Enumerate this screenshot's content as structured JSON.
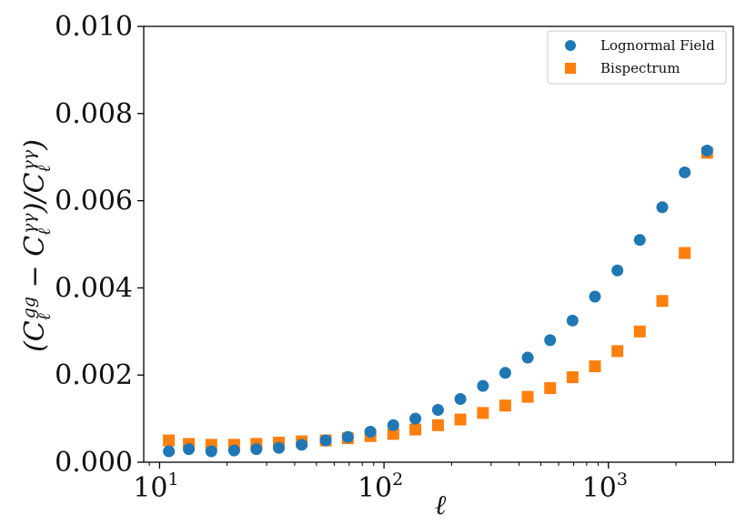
{
  "chart_data": {
    "type": "scatter",
    "xscale": "log",
    "xlim": [
      8.5,
      3600
    ],
    "ylim": [
      0.0,
      0.01
    ],
    "xlabel": "ℓ",
    "ylabel": "(C_ℓ^gg − C_ℓ^γγ)/C_ℓ^γγ",
    "y_ticks": [
      "0.000",
      "0.002",
      "0.004",
      "0.006",
      "0.008",
      "0.010"
    ],
    "y_tick_values": [
      0.0,
      0.002,
      0.004,
      0.006,
      0.008,
      0.01
    ],
    "x_ticks": [
      {
        "value": 10,
        "base": "10",
        "exp": "1"
      },
      {
        "value": 100,
        "base": "10",
        "exp": "2"
      },
      {
        "value": 1000,
        "base": "10",
        "exp": "3"
      }
    ],
    "legend_position": "top-right",
    "series": [
      {
        "name": "Lognormal Field",
        "marker": "circle",
        "color": "#1f77b4",
        "x": [
          11,
          13.5,
          17,
          21.5,
          27,
          34,
          43,
          55,
          69,
          87,
          110,
          138,
          174,
          219,
          276,
          347,
          437,
          550,
          692,
          871,
          1097,
          1380,
          1738,
          2188,
          2754
        ],
        "y": [
          0.00025,
          0.0003,
          0.00025,
          0.00027,
          0.0003,
          0.00033,
          0.0004,
          0.0005,
          0.00058,
          0.0007,
          0.00085,
          0.001,
          0.0012,
          0.00145,
          0.00175,
          0.00205,
          0.0024,
          0.0028,
          0.00325,
          0.0038,
          0.0044,
          0.0051,
          0.00585,
          0.00665,
          0.00715
        ]
      },
      {
        "name": "Bispectrum",
        "marker": "square",
        "color": "#ff7f0e",
        "x": [
          11,
          13.5,
          17,
          21.5,
          27,
          34,
          43,
          55,
          69,
          87,
          110,
          138,
          174,
          219,
          276,
          347,
          437,
          550,
          692,
          871,
          1097,
          1380,
          1738,
          2188,
          2754
        ],
        "y": [
          0.0005,
          0.00042,
          0.0004,
          0.0004,
          0.00042,
          0.00045,
          0.00048,
          0.0005,
          0.00055,
          0.0006,
          0.00065,
          0.00075,
          0.00085,
          0.00098,
          0.00113,
          0.0013,
          0.0015,
          0.0017,
          0.00195,
          0.0022,
          0.00255,
          0.003,
          0.0037,
          0.0048,
          0.0071
        ]
      }
    ]
  }
}
